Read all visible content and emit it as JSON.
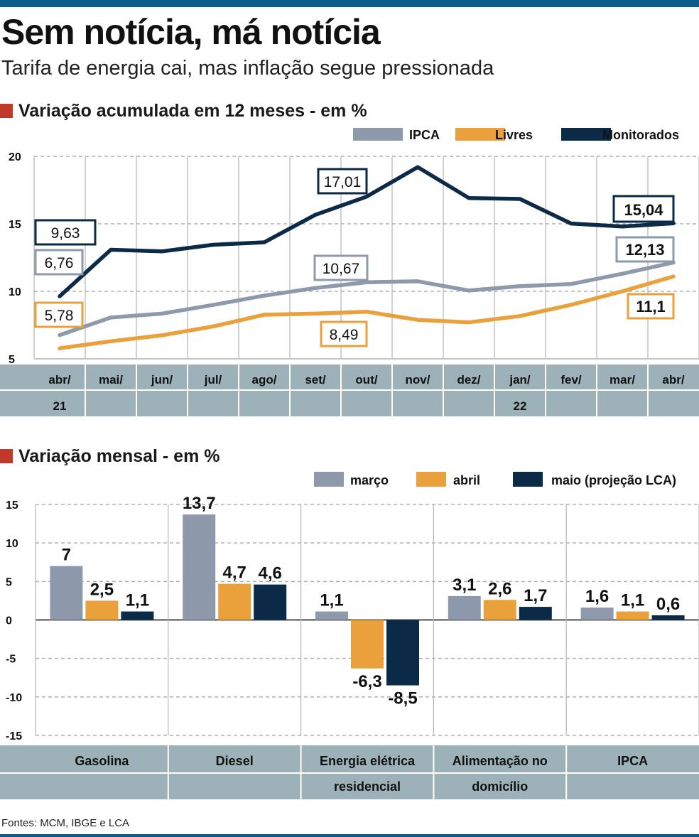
{
  "header": {
    "title": "Sem notícia, má notícia",
    "subtitle": "Tarifa de energia cai, mas inflação segue pressionada"
  },
  "footer": {
    "source": "Fontes: MCM, IBGE e LCA"
  },
  "colors": {
    "grey": "#8e9aab",
    "orange": "#eba13b",
    "navy": "#0b2a47",
    "band": "#9db1b8",
    "accent": "#c0392b",
    "topbar": "#0d5d8a"
  },
  "chart_data": [
    {
      "type": "line",
      "title": "Variação acumulada em 12 meses -  em %",
      "categories": [
        "abr/",
        "mai/",
        "jun/",
        "jul/",
        "ago/",
        "set/",
        "out/",
        "nov/",
        "dez/",
        "jan/",
        "fev/",
        "mar/",
        "abr/"
      ],
      "year_labels": [
        {
          "index": 0,
          "label": "21"
        },
        {
          "index": 9,
          "label": "22"
        }
      ],
      "ylim": [
        5,
        20
      ],
      "yticks": [
        5,
        10,
        15,
        20
      ],
      "grid": true,
      "legend_position": "top-right",
      "series": [
        {
          "name": "IPCA",
          "color": "#8e9aab",
          "values": [
            6.76,
            8.06,
            8.35,
            8.99,
            9.68,
            10.25,
            10.67,
            10.74,
            10.06,
            10.38,
            10.54,
            11.3,
            12.13
          ]
        },
        {
          "name": "Livres",
          "color": "#eba13b",
          "values": [
            5.78,
            6.3,
            6.74,
            7.4,
            8.27,
            8.35,
            8.49,
            7.89,
            7.7,
            8.17,
            9.0,
            10.0,
            11.1
          ]
        },
        {
          "name": "Monitorados",
          "color": "#0b2a47",
          "values": [
            9.63,
            13.08,
            12.96,
            13.45,
            13.63,
            15.67,
            17.01,
            19.2,
            16.91,
            16.84,
            15.02,
            14.8,
            15.04
          ]
        }
      ],
      "annotations": [
        {
          "series": "Monitorados",
          "index": 0,
          "label": "9,63",
          "color": "#0b2a47",
          "bold": false
        },
        {
          "series": "IPCA",
          "index": 0,
          "label": "6,76",
          "color": "#8e9aab",
          "bold": false
        },
        {
          "series": "Livres",
          "index": 0,
          "label": "5,78",
          "color": "#eba13b",
          "bold": false
        },
        {
          "series": "Monitorados",
          "index": 6,
          "label": "17,01",
          "color": "#0b2a47",
          "bold": false
        },
        {
          "series": "IPCA",
          "index": 6,
          "label": "10,67",
          "color": "#8e9aab",
          "bold": false
        },
        {
          "series": "Livres",
          "index": 6,
          "label": "8,49",
          "color": "#eba13b",
          "bold": false
        },
        {
          "series": "Monitorados",
          "index": 12,
          "label": "15,04",
          "color": "#0b2a47",
          "bold": true
        },
        {
          "series": "IPCA",
          "index": 12,
          "label": "12,13",
          "color": "#8e9aab",
          "bold": true
        },
        {
          "series": "Livres",
          "index": 12,
          "label": "11,1",
          "color": "#eba13b",
          "bold": true
        }
      ]
    },
    {
      "type": "bar",
      "title": "Variação mensal - em %",
      "categories": [
        [
          "Gasolina"
        ],
        [
          "Diesel"
        ],
        [
          "Energia elétrica",
          "residencial"
        ],
        [
          "Alimentação no",
          "domicílio"
        ],
        [
          "IPCA"
        ]
      ],
      "ylim": [
        -15,
        15
      ],
      "yticks": [
        15,
        10,
        5,
        0,
        -5,
        -10,
        -15
      ],
      "grid": true,
      "legend_position": "top-right",
      "series": [
        {
          "name": "março",
          "color": "#8e9aab",
          "values": [
            7,
            13.7,
            1.1,
            3.1,
            1.6
          ],
          "labels": [
            "7",
            "13,7",
            "1,1",
            "3,1",
            "1,6"
          ]
        },
        {
          "name": "abril",
          "color": "#eba13b",
          "values": [
            2.5,
            4.7,
            -6.3,
            2.6,
            1.1
          ],
          "labels": [
            "2,5",
            "4,7",
            "-6,3",
            "2,6",
            "1,1"
          ]
        },
        {
          "name": "maio (projeção LCA)",
          "color": "#0b2a47",
          "values": [
            1.1,
            4.6,
            -8.5,
            1.7,
            0.6
          ],
          "labels": [
            "1,1",
            "4,6",
            "-8,5",
            "1,7",
            "0,6"
          ]
        }
      ]
    }
  ]
}
